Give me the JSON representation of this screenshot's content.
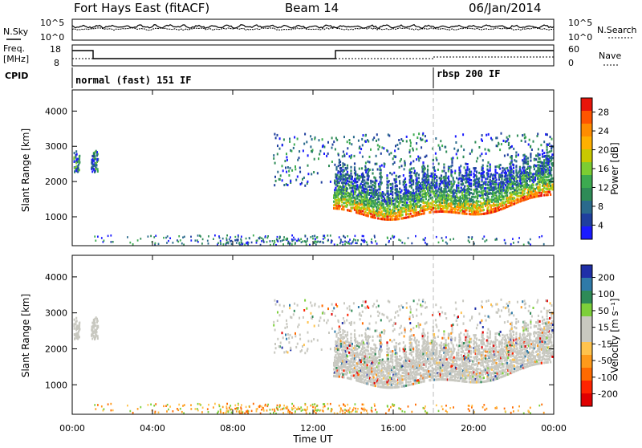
{
  "header": {
    "station": "Fort Hays East (fitACF)",
    "beam": "Beam 14",
    "date": "06/Jan/2014"
  },
  "panel_labels": {
    "nsky": "N.Sky",
    "nsearch": "N.Search",
    "freq_line1": "Freq.",
    "freq_line2": "[MHz]",
    "nave": "Nave",
    "cpid": "CPID"
  },
  "noise_axis": {
    "left_top": "10^5",
    "left_bottom": "10^0",
    "right_top": "10^5",
    "right_bottom": "10^0"
  },
  "freq_axis": {
    "left_top": "18",
    "left_bottom": "8",
    "right_top": "60",
    "right_bottom": "0"
  },
  "cpid_segments": [
    {
      "label": "normal (fast) 151 IF",
      "start_hour": 0
    },
    {
      "label": "rbsp 200 IF",
      "start_hour": 18
    }
  ],
  "chart_data": [
    {
      "type": "heatmap",
      "name": "power",
      "ylabel": "Slant Range [km]",
      "xlim": [
        0,
        24
      ],
      "ylim": [
        180,
        4600
      ],
      "yticks": [
        "1000",
        "2000",
        "3000",
        "4000"
      ],
      "colorbar": {
        "label": "Power [dB]",
        "ticks": [
          "28",
          "24",
          "20",
          "16",
          "12",
          "8",
          "4"
        ],
        "colors": [
          "#e8150a",
          "#ff5500",
          "#ff8c00",
          "#ffb000",
          "#c8c800",
          "#7ccd32",
          "#3caa50",
          "#2e8b57",
          "#2a6a8c",
          "#1f3f9e",
          "#1a1aff"
        ]
      }
    },
    {
      "type": "heatmap",
      "name": "velocity",
      "ylabel": "Slant Range [km]",
      "xlabel": "Time UT",
      "xlim": [
        0,
        24
      ],
      "ylim": [
        180,
        4600
      ],
      "xticks": [
        "00:00",
        "04:00",
        "08:00",
        "12:00",
        "16:00",
        "20:00",
        "00:00"
      ],
      "yticks": [
        "1000",
        "2000",
        "3000",
        "4000"
      ],
      "colorbar": {
        "label": "Velocity [m s⁻¹]",
        "ticks": [
          "200",
          "100",
          "50",
          "15",
          "-15",
          "-50",
          "-100",
          "-200"
        ],
        "colors": [
          "#1f2fa8",
          "#2f7aa8",
          "#2e8b57",
          "#7dcf3a",
          "#c8c8c0",
          "#c8c8c0",
          "#ffc34d",
          "#ff9a1a",
          "#ff6a00",
          "#ff2400",
          "#e00000"
        ]
      }
    }
  ]
}
